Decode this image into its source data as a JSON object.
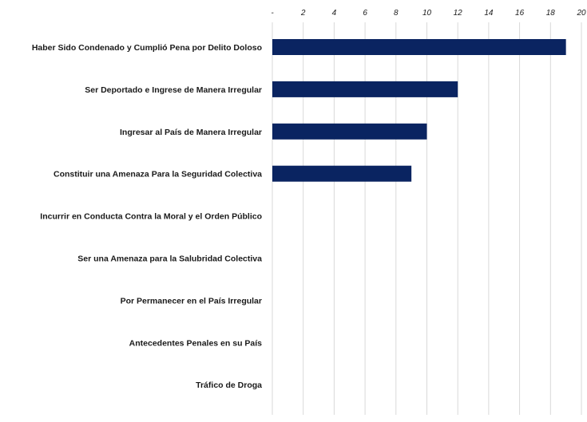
{
  "chart_data": {
    "type": "bar",
    "orientation": "horizontal",
    "categories": [
      "Haber Sido Condenado y Cumplió Pena por Delito Doloso",
      "Ser Deportado e Ingrese de Manera Irregular",
      "Ingresar al País de Manera Irregular",
      "Constituir una Amenaza Para la Seguridad Colectiva",
      "Incurrir en Conducta Contra la Moral y el Orden Público",
      "Ser una Amenaza para la Salubridad Colectiva",
      "Por Permanecer en el País Irregular",
      "Antecedentes Penales en su País",
      "Tráfico de Droga"
    ],
    "values": [
      19,
      12,
      10,
      9,
      0,
      0,
      0,
      0,
      0
    ],
    "xlim": [
      0,
      20
    ],
    "tick_values": [
      0,
      2,
      4,
      6,
      8,
      10,
      12,
      14,
      16,
      18,
      20
    ],
    "tick_labels": [
      "-",
      "2",
      "4",
      "6",
      "8",
      "10",
      "12",
      "14",
      "16",
      "18",
      "20"
    ],
    "axis_position": "top",
    "grid": true,
    "bar_color": "#0a2461",
    "grid_color": "#d9d9d9",
    "title": "",
    "xlabel": "",
    "ylabel": ""
  }
}
